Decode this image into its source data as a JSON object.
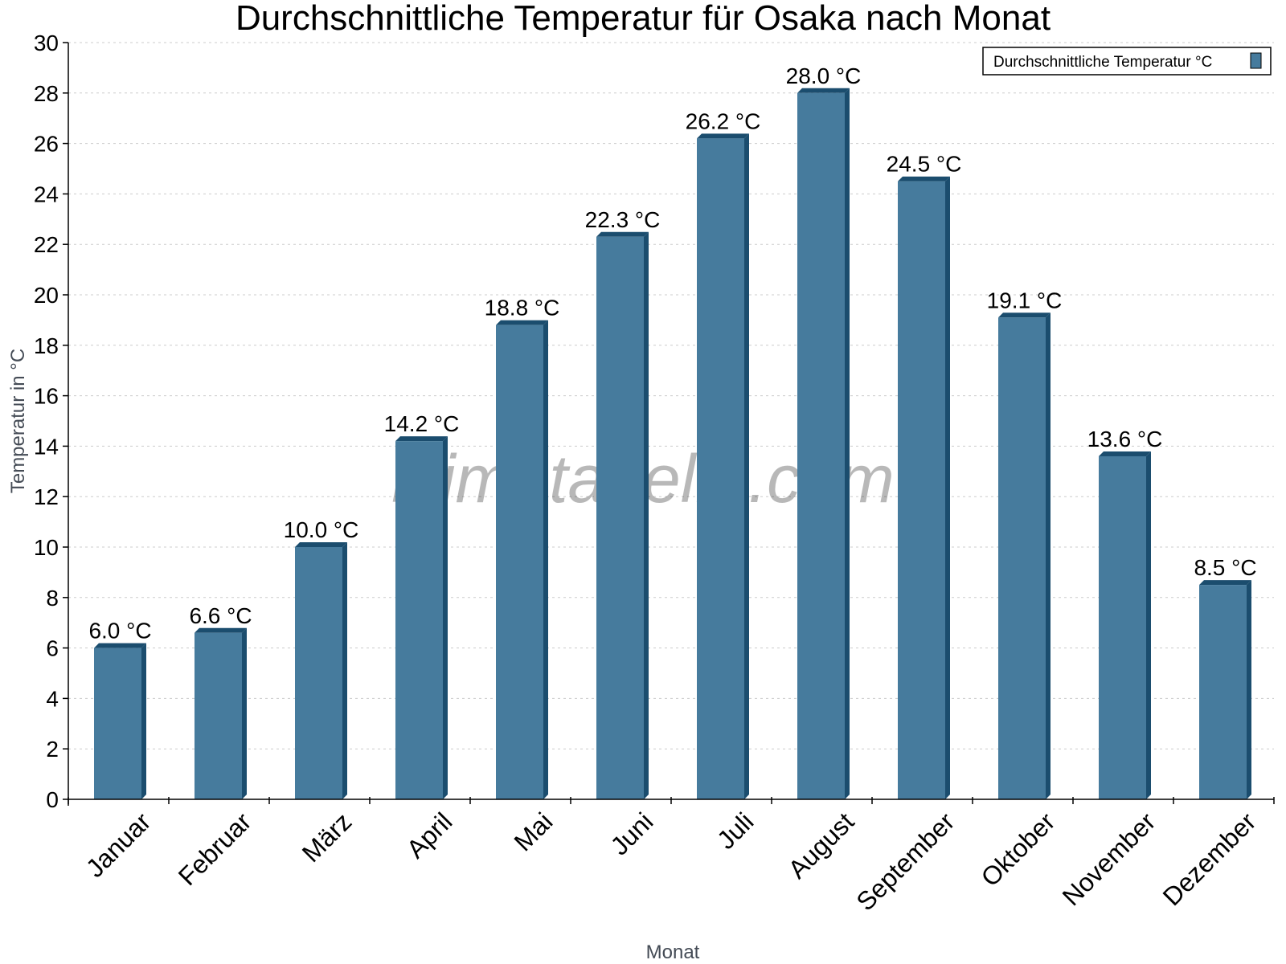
{
  "chart_data": {
    "type": "bar",
    "title": "Durchschnittliche Temperatur für Osaka nach Monat",
    "xlabel": "Monat",
    "ylabel": "Temperatur in °C",
    "categories": [
      "Januar",
      "Februar",
      "März",
      "April",
      "Mai",
      "Juni",
      "Juli",
      "August",
      "September",
      "Oktober",
      "November",
      "Dezember"
    ],
    "series": [
      {
        "name": "Durchschnittliche Temperatur °C",
        "values": [
          6.0,
          6.6,
          10.0,
          14.2,
          18.8,
          22.3,
          26.2,
          28.0,
          24.5,
          19.1,
          13.6,
          8.5
        ]
      }
    ],
    "data_labels": [
      "6.0 °C",
      "6.6 °C",
      "10.0 °C",
      "14.2 °C",
      "18.8 °C",
      "22.3 °C",
      "26.2 °C",
      "28.0 °C",
      "24.5 °C",
      "19.1 °C",
      "13.6 °C",
      "8.5 °C"
    ],
    "ylim": [
      0,
      30
    ],
    "yticks": [
      0,
      2,
      4,
      6,
      8,
      10,
      12,
      14,
      16,
      18,
      20,
      22,
      24,
      26,
      28,
      30
    ],
    "grid": true,
    "legend_position": "top-right",
    "colors": {
      "bar": "#467b9d",
      "bar_side": "#1b4d6e",
      "grid": "#cccccc"
    },
    "watermark": "klimatabelle.com"
  }
}
